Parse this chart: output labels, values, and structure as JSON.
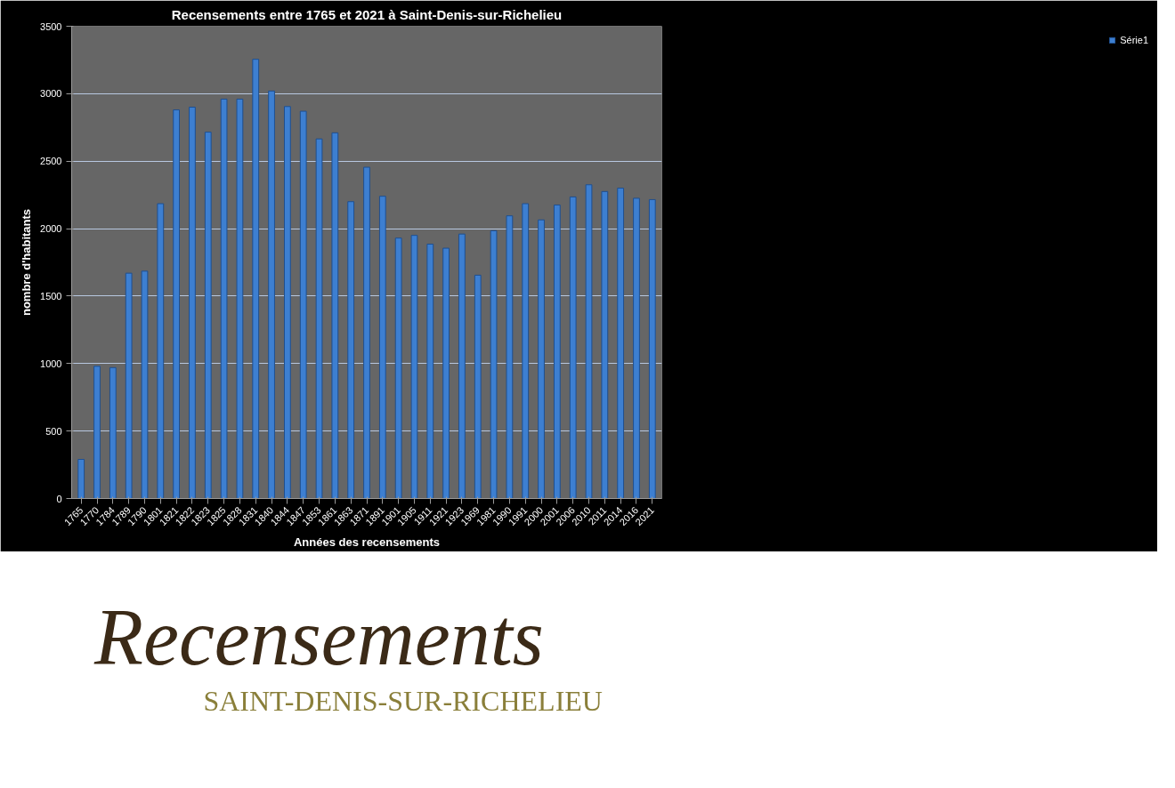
{
  "chart_data": {
    "type": "bar",
    "title": "Recensements entre 1765 et 2021 à Saint-Denis-sur-Richelieu",
    "xlabel": "Années des recensements",
    "ylabel": "nombre d'habitants",
    "categories": [
      "1765",
      "1770",
      "1784",
      "1789",
      "1790",
      "1801",
      "1821",
      "1822",
      "1823",
      "1825",
      "1828",
      "1831",
      "1840",
      "1844",
      "1847",
      "1853",
      "1861",
      "1863",
      "1871",
      "1891",
      "1901",
      "1905",
      "1911",
      "1921",
      "1923",
      "1969",
      "1981",
      "1990",
      "1991",
      "2000",
      "2001",
      "2006",
      "2010",
      "2011",
      "2014",
      "2016",
      "2021"
    ],
    "series": [
      {
        "name": "Série1",
        "color": "#3d7fd1",
        "values": [
          290,
          980,
          970,
          1670,
          1685,
          2185,
          2880,
          2900,
          2715,
          2960,
          2960,
          3255,
          3020,
          2905,
          2870,
          2665,
          2710,
          2200,
          2455,
          2240,
          1930,
          1950,
          1885,
          1855,
          1960,
          1655,
          1985,
          2095,
          2185,
          2065,
          2175,
          2235,
          2325,
          2275,
          2300,
          2225,
          2215
        ]
      }
    ],
    "ylim": [
      0,
      3500
    ],
    "yticks": [
      0,
      500,
      1000,
      1500,
      2000,
      2500,
      3000,
      3500
    ],
    "grid": "y",
    "legend": "right",
    "annotations": [
      "Recensements",
      "SAINT-DENIS-SUR-RICHELIEU"
    ]
  }
}
